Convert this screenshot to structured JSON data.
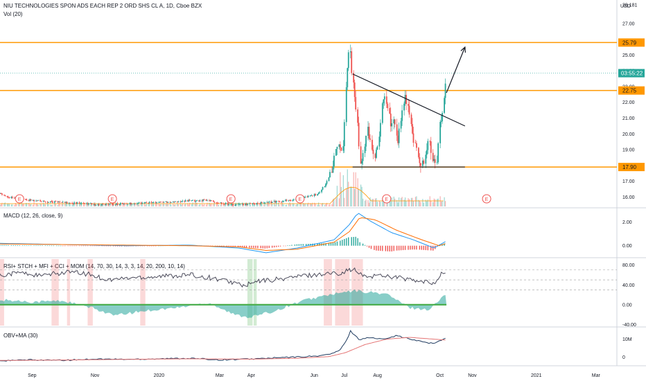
{
  "header": {
    "title": "NIU TECHNOLOGIES SPON ADS EACH REP 2 ORD SHS CL A, 1D, Cboe BZX",
    "volume_label": "Vol (20)",
    "currency": "USD"
  },
  "chart_data": [
    {
      "type": "candlestick",
      "symbol": "NIU",
      "interval": "1D",
      "exchange": "Cboe BZX",
      "currency": "USD",
      "ylim": [
        15.4,
        28.4
      ],
      "y_ticks": [
        28.18,
        27.0,
        26.0,
        25.0,
        24.0,
        23.0,
        22.0,
        21.0,
        20.0,
        19.0,
        18.0,
        17.0,
        16.0
      ],
      "y_tick_labels": [
        "28.181",
        "27.00",
        "",
        "25.00",
        "24.00",
        "23.00",
        "22.00",
        "21.00",
        "20.00",
        "19.00",
        "18.00",
        "17.00",
        "16.00"
      ],
      "x_ticks": [
        "Sep",
        "Nov",
        "2020",
        "Mar",
        "Apr",
        "Jun",
        "Jul",
        "Aug",
        "Oct",
        "Nov",
        "2021",
        "Mar"
      ],
      "horizontal_levels": [
        {
          "value": 25.79,
          "label": "25.79",
          "color": "#ff9800"
        },
        {
          "value": 22.75,
          "label": "22.75",
          "color": "#ff9800"
        },
        {
          "value": 17.9,
          "label": "17.90",
          "color": "#ff9800"
        }
      ],
      "last_price": {
        "value": 23.85,
        "label": "03:55:22",
        "color": "#26a69a"
      },
      "trendlines": [
        {
          "from": [
            "2020-07-08",
            23.8
          ],
          "to": [
            "2020-10-25",
            20.5
          ],
          "color": "#131722"
        },
        {
          "from": [
            "2020-07-08",
            17.9
          ],
          "to": [
            "2020-10-25",
            17.9
          ],
          "color": "#131722"
        }
      ],
      "arrow": {
        "from": [
          "2020-10-07",
          22.6
        ],
        "to": [
          "2020-10-25",
          25.5
        ],
        "color": "#131722"
      },
      "earnings_markers": [
        "2019-08-20",
        "2019-11-18",
        "2020-03-12",
        "2020-05-18",
        "2020-08-10",
        "2020-11-15"
      ],
      "earnings_marker_label": "E",
      "price_path": [
        [
          "2019-08-01",
          16.2
        ],
        [
          "2019-08-10",
          16.0
        ],
        [
          "2019-08-30",
          15.8
        ],
        [
          "2019-09-20",
          15.7
        ],
        [
          "2019-10-15",
          15.6
        ],
        [
          "2019-11-10",
          15.5
        ],
        [
          "2019-12-10",
          15.6
        ],
        [
          "2020-01-15",
          15.7
        ],
        [
          "2020-02-15",
          15.8
        ],
        [
          "2020-03-15",
          15.5
        ],
        [
          "2020-04-10",
          15.6
        ],
        [
          "2020-05-10",
          15.8
        ],
        [
          "2020-05-25",
          16.0
        ],
        [
          "2020-06-05",
          16.2
        ],
        [
          "2020-06-12",
          16.8
        ],
        [
          "2020-06-18",
          17.6
        ],
        [
          "2020-06-22",
          18.8
        ],
        [
          "2020-06-25",
          19.6
        ],
        [
          "2020-06-29",
          19.0
        ],
        [
          "2020-07-01",
          21.5
        ],
        [
          "2020-07-03",
          24.0
        ],
        [
          "2020-07-06",
          25.7
        ],
        [
          "2020-07-08",
          23.5
        ],
        [
          "2020-07-10",
          22.5
        ],
        [
          "2020-07-13",
          21.0
        ],
        [
          "2020-07-15",
          18.5
        ],
        [
          "2020-07-17",
          17.9
        ],
        [
          "2020-07-20",
          19.2
        ],
        [
          "2020-07-23",
          20.5
        ],
        [
          "2020-07-27",
          19.0
        ],
        [
          "2020-07-30",
          18.4
        ],
        [
          "2020-08-03",
          19.8
        ],
        [
          "2020-08-06",
          21.8
        ],
        [
          "2020-08-09",
          22.6
        ],
        [
          "2020-08-12",
          21.5
        ],
        [
          "2020-08-15",
          20.4
        ],
        [
          "2020-08-18",
          20.8
        ],
        [
          "2020-08-21",
          19.5
        ],
        [
          "2020-08-25",
          21.0
        ],
        [
          "2020-08-28",
          22.4
        ],
        [
          "2020-09-01",
          21.5
        ],
        [
          "2020-09-04",
          20.0
        ],
        [
          "2020-09-08",
          19.0
        ],
        [
          "2020-09-12",
          18.1
        ],
        [
          "2020-09-16",
          18.4
        ],
        [
          "2020-09-20",
          19.6
        ],
        [
          "2020-09-24",
          18.5
        ],
        [
          "2020-09-28",
          18.0
        ],
        [
          "2020-10-01",
          20.5
        ],
        [
          "2020-10-04",
          21.5
        ],
        [
          "2020-10-06",
          22.5
        ],
        [
          "2020-10-07",
          23.85
        ]
      ],
      "volume_bars": "dense, mostly low with a spike around late June to early July 2020"
    },
    {
      "type": "line",
      "title": "MACD (12, 26, close, 9)",
      "y_ticks": [
        2.0,
        0.0
      ],
      "y_tick_labels": [
        "2.00",
        "0.00"
      ],
      "ylim": [
        -0.9,
        3.1
      ],
      "series": [
        {
          "name": "MACD",
          "color": "#2196f3",
          "points": [
            [
              "2019-08-01",
              0.2
            ],
            [
              "2019-10-01",
              0.1
            ],
            [
              "2019-12-01",
              0.0
            ],
            [
              "2020-02-01",
              0.05
            ],
            [
              "2020-03-20",
              -0.2
            ],
            [
              "2020-04-15",
              -0.6
            ],
            [
              "2020-05-15",
              -0.2
            ],
            [
              "2020-06-20",
              0.5
            ],
            [
              "2020-07-05",
              1.8
            ],
            [
              "2020-07-13",
              2.8
            ],
            [
              "2020-07-25",
              2.1
            ],
            [
              "2020-08-15",
              1.1
            ],
            [
              "2020-09-05",
              0.5
            ],
            [
              "2020-09-25",
              -0.2
            ],
            [
              "2020-10-07",
              0.4
            ]
          ]
        },
        {
          "name": "Signal",
          "color": "#ff6d00",
          "points": [
            [
              "2019-08-01",
              0.15
            ],
            [
              "2019-10-01",
              0.1
            ],
            [
              "2019-12-01",
              0.05
            ],
            [
              "2020-02-01",
              0.0
            ],
            [
              "2020-03-20",
              -0.1
            ],
            [
              "2020-04-15",
              -0.4
            ],
            [
              "2020-05-15",
              -0.3
            ],
            [
              "2020-06-20",
              0.3
            ],
            [
              "2020-07-05",
              1.2
            ],
            [
              "2020-07-15",
              2.4
            ],
            [
              "2020-07-30",
              2.2
            ],
            [
              "2020-08-20",
              1.3
            ],
            [
              "2020-09-10",
              0.6
            ],
            [
              "2020-09-30",
              0.0
            ],
            [
              "2020-10-07",
              0.2
            ]
          ]
        }
      ]
    },
    {
      "type": "line",
      "title": "RSI+ STCH + MFI + CCI + MOM (14, 70, 30, 14, 3, 3, 14, 20, 200, 10, 14)",
      "y_ticks": [
        80.0,
        40.0,
        0.0,
        -40.0
      ],
      "y_tick_labels": [
        "80.00",
        "40.00",
        "0.00",
        "-40.00"
      ],
      "ylim": [
        -42,
        92
      ],
      "reference_lines": [
        70,
        50,
        30
      ],
      "histogram_baseline": 0,
      "series": [
        {
          "name": "Composite oscillator",
          "color": "#4a4a5a",
          "points": [
            [
              "2019-08-01",
              60
            ],
            [
              "2019-08-20",
              65
            ],
            [
              "2019-09-10",
              58
            ],
            [
              "2019-10-05",
              66
            ],
            [
              "2019-10-25",
              62
            ],
            [
              "2019-11-15",
              50
            ],
            [
              "2019-12-10",
              55
            ],
            [
              "2020-01-10",
              58
            ],
            [
              "2020-02-01",
              60
            ],
            [
              "2020-02-20",
              55
            ],
            [
              "2020-03-15",
              45
            ],
            [
              "2020-03-25",
              38
            ],
            [
              "2020-04-10",
              48
            ],
            [
              "2020-04-30",
              52
            ],
            [
              "2020-05-20",
              58
            ],
            [
              "2020-06-10",
              62
            ],
            [
              "2020-06-25",
              64
            ],
            [
              "2020-07-08",
              72
            ],
            [
              "2020-07-20",
              56
            ],
            [
              "2020-08-05",
              60
            ],
            [
              "2020-08-25",
              54
            ],
            [
              "2020-09-10",
              46
            ],
            [
              "2020-09-25",
              44
            ],
            [
              "2020-10-07",
              70
            ]
          ]
        }
      ],
      "histogram": {
        "color": "#26a69a",
        "points": [
          [
            "2019-08-01",
            10
          ],
          [
            "2019-09-01",
            6
          ],
          [
            "2019-10-01",
            8
          ],
          [
            "2019-11-01",
            -8
          ],
          [
            "2019-11-20",
            -22
          ],
          [
            "2019-12-20",
            -12
          ],
          [
            "2020-01-20",
            -6
          ],
          [
            "2020-02-20",
            4
          ],
          [
            "2020-03-15",
            -20
          ],
          [
            "2020-03-30",
            -25
          ],
          [
            "2020-04-20",
            -15
          ],
          [
            "2020-05-20",
            8
          ],
          [
            "2020-06-15",
            20
          ],
          [
            "2020-07-10",
            28
          ],
          [
            "2020-08-10",
            22
          ],
          [
            "2020-09-01",
            -6
          ],
          [
            "2020-09-20",
            -10
          ],
          [
            "2020-10-07",
            22
          ]
        ]
      },
      "highlight_bands": [
        {
          "from": "2019-08-01",
          "to": "2019-08-05",
          "color": "red"
        },
        {
          "from": "2019-09-20",
          "to": "2019-09-27",
          "color": "red"
        },
        {
          "from": "2019-10-05",
          "to": "2019-10-08",
          "color": "red"
        },
        {
          "from": "2019-10-25",
          "to": "2019-10-30",
          "color": "red"
        },
        {
          "from": "2019-12-15",
          "to": "2019-12-20",
          "color": "red"
        },
        {
          "from": "2020-03-28",
          "to": "2020-04-02",
          "color": "green"
        },
        {
          "from": "2020-04-03",
          "to": "2020-04-06",
          "color": "green"
        },
        {
          "from": "2020-06-10",
          "to": "2020-06-18",
          "color": "red"
        },
        {
          "from": "2020-06-21",
          "to": "2020-07-05",
          "color": "red"
        },
        {
          "from": "2020-07-07",
          "to": "2020-07-18",
          "color": "red"
        }
      ]
    },
    {
      "type": "line",
      "title": "OBV+MA (30)",
      "y_ticks": [
        10000000,
        0
      ],
      "y_tick_labels": [
        "10M",
        "0"
      ],
      "ylim": [
        -4000000,
        16000000
      ],
      "series": [
        {
          "name": "OBV",
          "color": "#1e3a5f",
          "points": [
            [
              "2019-08-01",
              -2000000
            ],
            [
              "2019-09-01",
              -1500000
            ],
            [
              "2019-10-01",
              -1800000
            ],
            [
              "2019-11-01",
              -1000000
            ],
            [
              "2019-12-01",
              -1200000
            ],
            [
              "2020-01-01",
              -900000
            ],
            [
              "2020-02-01",
              -600000
            ],
            [
              "2020-03-01",
              -1500000
            ],
            [
              "2020-04-01",
              -1000000
            ],
            [
              "2020-05-01",
              -200000
            ],
            [
              "2020-06-01",
              500000
            ],
            [
              "2020-06-15",
              1500000
            ],
            [
              "2020-06-25",
              3500000
            ],
            [
              "2020-07-01",
              8000000
            ],
            [
              "2020-07-06",
              14500000
            ],
            [
              "2020-07-15",
              9500000
            ],
            [
              "2020-07-22",
              11000000
            ],
            [
              "2020-08-05",
              10000000
            ],
            [
              "2020-08-20",
              12000000
            ],
            [
              "2020-09-05",
              9500000
            ],
            [
              "2020-09-25",
              7500000
            ],
            [
              "2020-10-07",
              11000000
            ]
          ]
        },
        {
          "name": "MA",
          "color": "#e57373",
          "points": [
            [
              "2019-08-01",
              -1800000
            ],
            [
              "2019-10-01",
              -1600000
            ],
            [
              "2019-12-01",
              -1200000
            ],
            [
              "2020-02-01",
              -900000
            ],
            [
              "2020-04-01",
              -1100000
            ],
            [
              "2020-05-15",
              -600000
            ],
            [
              "2020-06-15",
              300000
            ],
            [
              "2020-07-01",
              2500000
            ],
            [
              "2020-07-20",
              7000000
            ],
            [
              "2020-08-10",
              10000000
            ],
            [
              "2020-09-01",
              11000000
            ],
            [
              "2020-10-07",
              9500000
            ]
          ]
        }
      ]
    }
  ],
  "panels": {
    "macd_title": "MACD (12, 26, close, 9)",
    "osc_title": "RSI+ STCH + MFI + CCI + MOM (14, 70, 30, 14, 3, 3, 14, 20, 200, 10, 14)",
    "obv_title": "OBV+MA (30)"
  },
  "colors": {
    "up": "#26a69a",
    "down": "#ef5350",
    "level": "#ff9800",
    "axis_text": "#131722",
    "macd_line": "#2196f3",
    "signal_line": "#ff6d00"
  }
}
